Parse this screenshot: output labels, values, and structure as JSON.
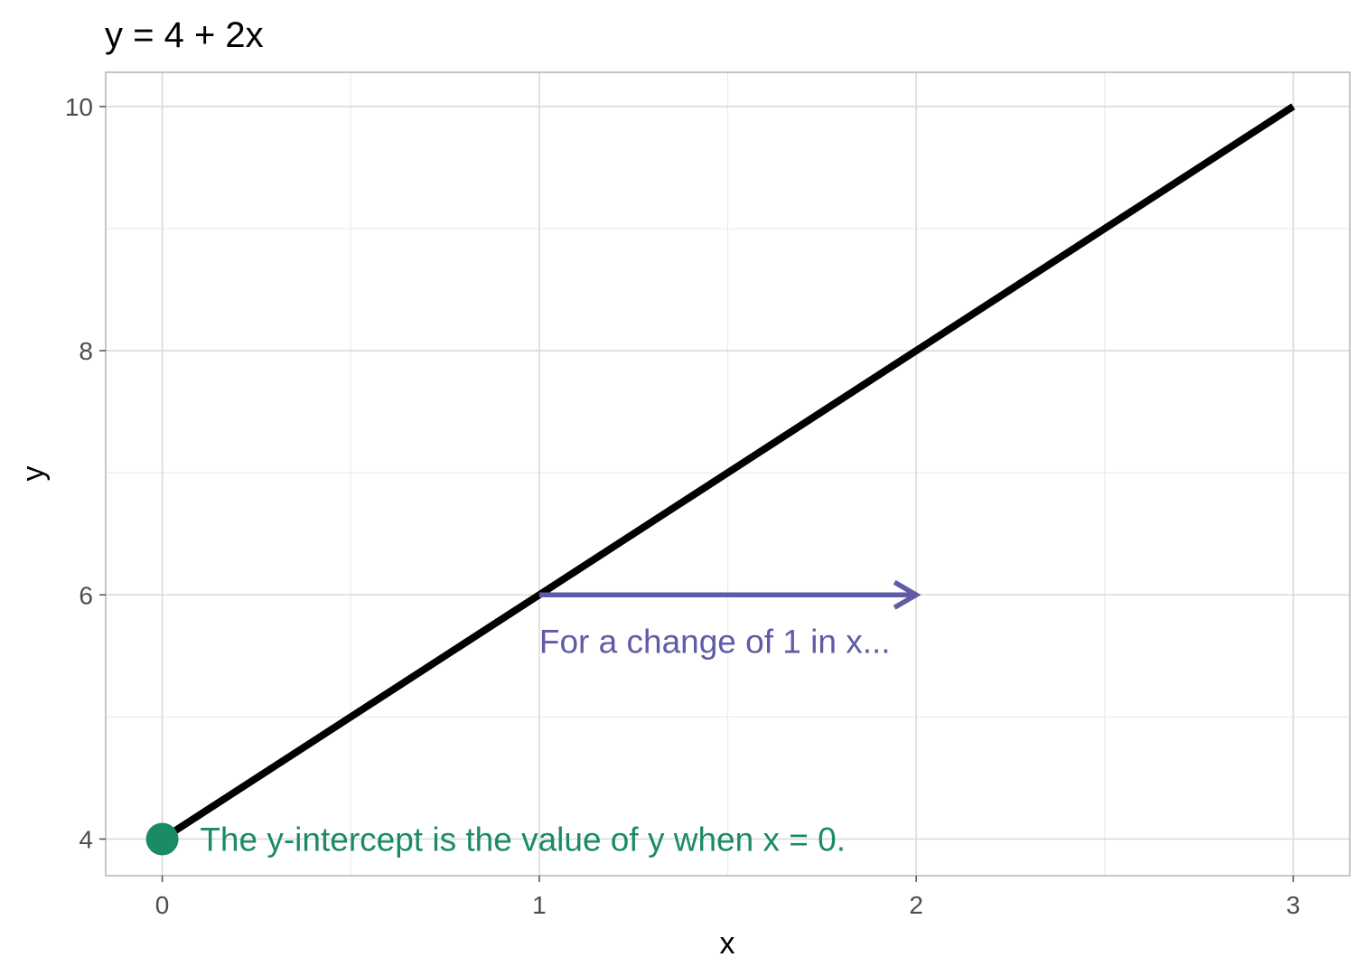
{
  "chart_data": {
    "type": "line",
    "title": "y = 4 + 2x",
    "xlabel": "x",
    "ylabel": "y",
    "xlim": [
      -0.15,
      3.15
    ],
    "ylim": [
      3.7,
      10.28
    ],
    "x_ticks": [
      0,
      1,
      2,
      3
    ],
    "x_minor": [
      0.5,
      1.5,
      2.5
    ],
    "y_ticks": [
      4,
      6,
      8,
      10
    ],
    "y_minor": [
      5,
      7,
      9
    ],
    "grid": true,
    "series": [
      {
        "x": [
          0,
          3
        ],
        "y": [
          4,
          10
        ],
        "color": "#000000"
      }
    ],
    "intercept_point": {
      "x": 0,
      "y": 4,
      "color": "#1b8a66"
    },
    "arrow": {
      "x_start": 1,
      "x_end": 2,
      "y": 6,
      "color": "#5f5ba6"
    },
    "annotations": [
      {
        "text": "For a change of 1 in x...",
        "x": 1,
        "y": 5.62,
        "color": "#5f5ba6"
      },
      {
        "text": "The y-intercept is the value of y when x = 0.",
        "x": 0.1,
        "y": 4,
        "color": "#1b8a66"
      }
    ]
  }
}
